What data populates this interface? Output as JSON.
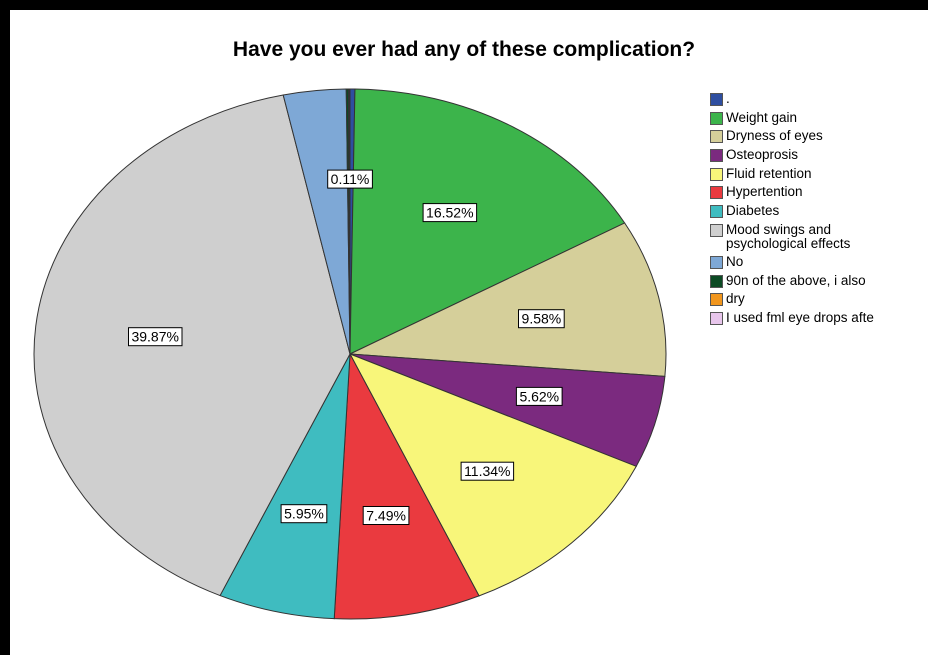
{
  "chart_data": {
    "type": "pie",
    "title": "Have you ever had any of these complication?",
    "slices": [
      {
        "name": ".",
        "value": 0.25,
        "label": "",
        "color": "#2e4ea0"
      },
      {
        "name": "Weight gain",
        "value": 16.52,
        "label": "16.52%",
        "color": "#3cb44b"
      },
      {
        "name": "Dryness of eyes",
        "value": 9.58,
        "label": "9.58%",
        "color": "#d5cf9a"
      },
      {
        "name": "Osteoprosis",
        "value": 5.62,
        "label": "5.62%",
        "color": "#7b2a7f"
      },
      {
        "name": "Fluid retention",
        "value": 11.34,
        "label": "11.34%",
        "color": "#f8f67a"
      },
      {
        "name": "Hypertention",
        "value": 7.49,
        "label": "7.49%",
        "color": "#ea3a3f"
      },
      {
        "name": "Diabetes",
        "value": 5.95,
        "label": "5.95%",
        "color": "#3fbcc0"
      },
      {
        "name": "Mood swings and psychological effects",
        "value": 39.87,
        "label": "39.87%",
        "color": "#cfcfcf"
      },
      {
        "name": "No",
        "value": 3.2,
        "label": "",
        "color": "#7ea8d6"
      },
      {
        "name": "90n of the above, i also",
        "value": 0.11,
        "label": "0.11%",
        "color": "#0c4a24"
      },
      {
        "name": "dry",
        "value": 0.04,
        "label": "",
        "color": "#f1961d"
      },
      {
        "name": "I used fml eye drops afte",
        "value": 0.04,
        "label": "",
        "color": "#e8c6ec"
      }
    ],
    "legend": {
      "position": "right",
      "items": [
        {
          "text": ".",
          "color": "#2e4ea0"
        },
        {
          "text": "Weight gain",
          "color": "#3cb44b"
        },
        {
          "text": "Dryness of eyes",
          "color": "#d5cf9a"
        },
        {
          "text": "Osteoprosis",
          "color": "#7b2a7f"
        },
        {
          "text": "Fluid retention",
          "color": "#f8f67a"
        },
        {
          "text": "Hypertention",
          "color": "#ea3a3f"
        },
        {
          "text": "Diabetes",
          "color": "#3fbcc0"
        },
        {
          "text": "Mood swings and",
          "text2": "psychological effects",
          "color": "#cfcfcf"
        },
        {
          "text": "No",
          "color": "#7ea8d6"
        },
        {
          "text": "90n of the above, i also",
          "color": "#0c4a24"
        },
        {
          "text": "dry",
          "color": "#f1961d"
        },
        {
          "text": "I used fml eye drops afte",
          "color": "#e8c6ec"
        }
      ]
    }
  }
}
